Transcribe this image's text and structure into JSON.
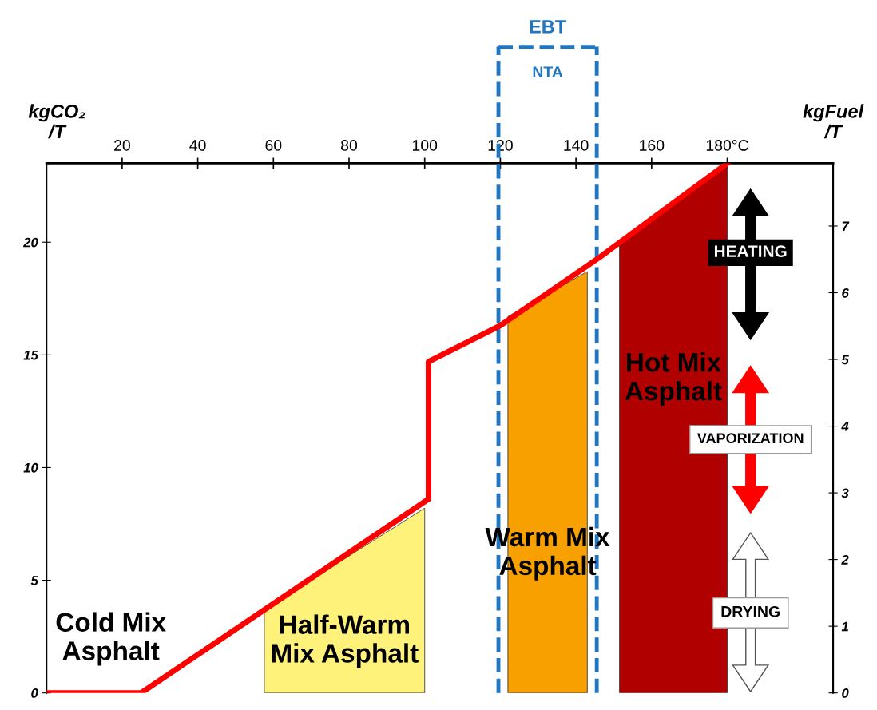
{
  "chart_data": {
    "type": "line",
    "xlabel": null,
    "ylabel": "kgCO₂\n/T",
    "y2label": "kgFuel\n/T",
    "series": [
      {
        "type": "area",
        "name": "Half-Warm\nMix Asphalt",
        "color": "#fff27a",
        "x": [
          57.6,
          100
        ],
        "values": [
          3.7,
          8.2
        ]
      },
      {
        "type": "area",
        "name": "Warm Mix\nAsphalt",
        "color": "#f7a000",
        "x": [
          122,
          143
        ],
        "values": [
          16.7,
          18.7
        ]
      },
      {
        "type": "area",
        "name": "Hot Mix\nAsphalt",
        "color": "#b00000",
        "x": [
          151.5,
          180
        ],
        "values": [
          19.9,
          23.4
        ]
      },
      {
        "color": "#ff0000",
        "x": [
          0,
          25,
          101,
          101,
          120,
          146,
          180
        ],
        "values": [
          0,
          0,
          8.6,
          14.7,
          16.3,
          19.3,
          23.5
        ]
      }
    ],
    "xlim": [
      0,
      208
    ],
    "ylim": [
      0,
      23.5
    ],
    "y2lim": [
      0,
      7.94
    ],
    "xticks": [
      20,
      40,
      60,
      80,
      100,
      120,
      140,
      160,
      {
        "value": 180,
        "label": "180°C"
      }
    ],
    "yticks": [
      0,
      5,
      10,
      15,
      20
    ],
    "y2ticks": [
      0,
      1,
      2,
      3,
      4,
      5,
      6,
      7
    ],
    "ref_lines": [
      {
        "axis": "x",
        "value": 119.5,
        "color": "#1f77c4",
        "line_style": "dashed"
      },
      {
        "axis": "x",
        "value": 145.5,
        "color": "#1f77c4",
        "line_style": "dashed"
      }
    ],
    "annotations": [
      "Cold Mix\nAsphalt",
      "NTA",
      "HEATING",
      "VAPORIZATION",
      "DRYING",
      "EBT"
    ],
    "grid": false,
    "legend": false,
    "marker": "none"
  }
}
